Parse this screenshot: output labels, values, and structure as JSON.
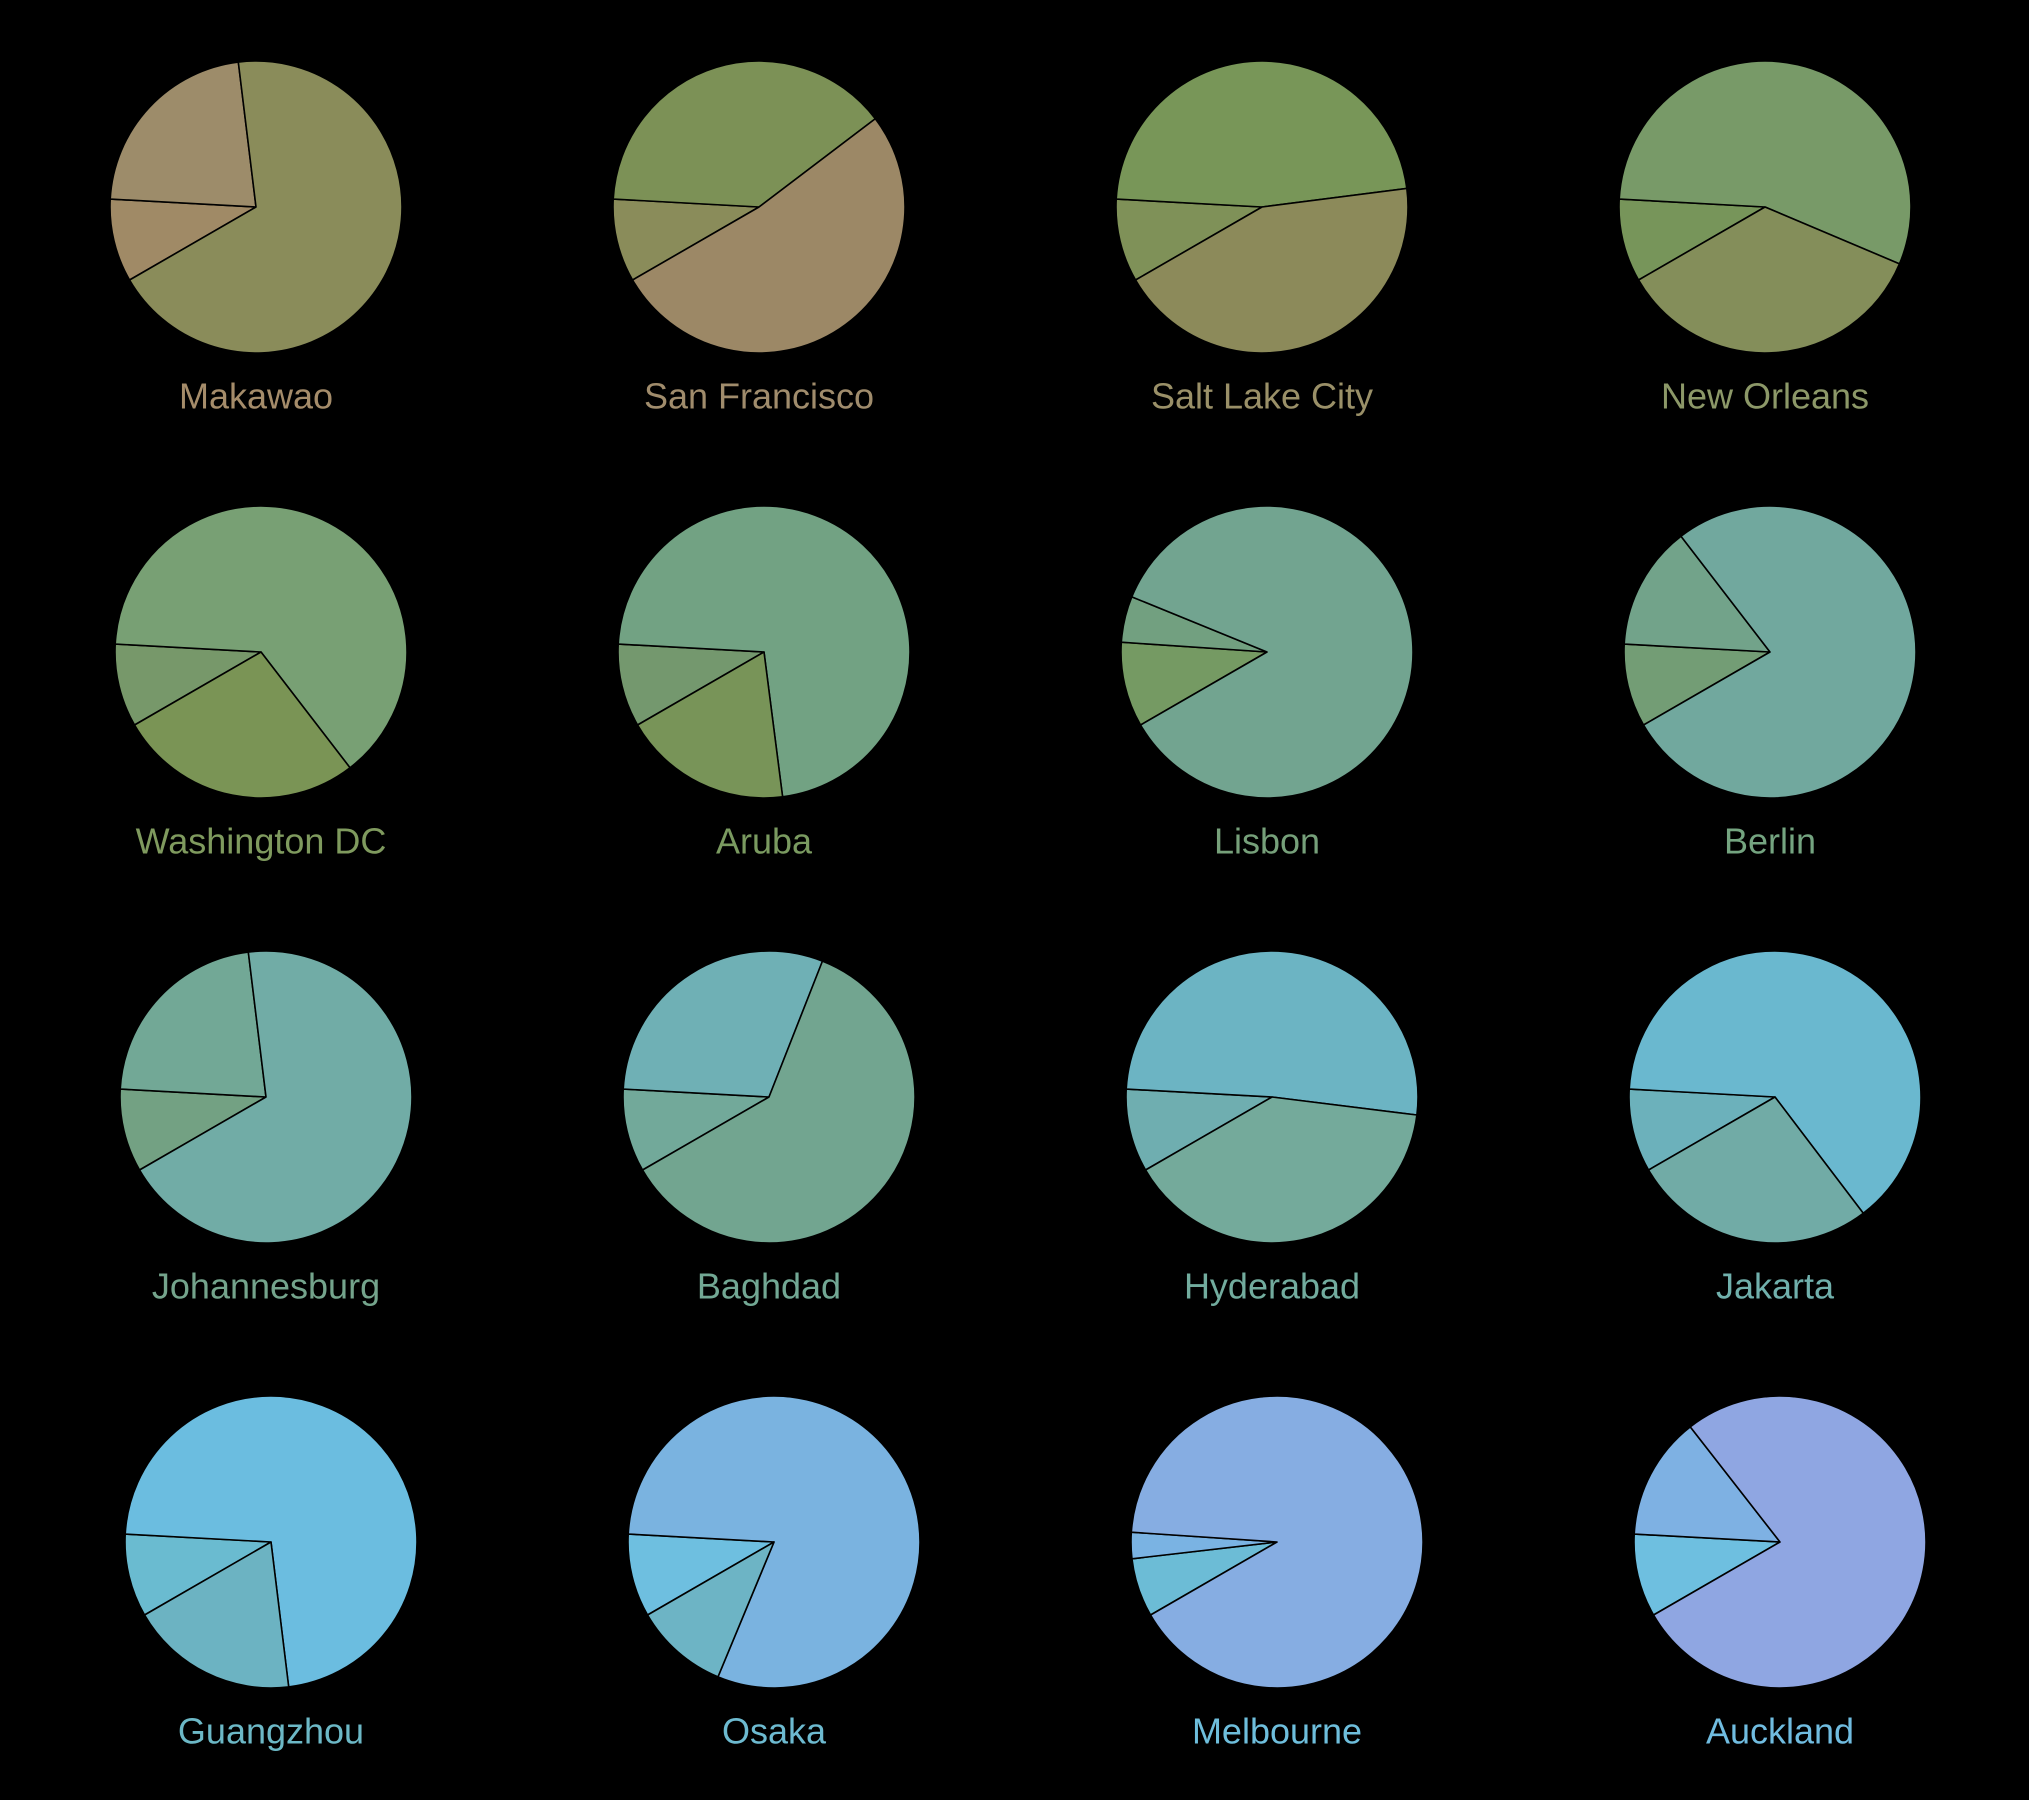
{
  "chart_data": [
    {
      "type": "pie",
      "title": "Makawao",
      "title_color": "#a58c6a",
      "values": [
        9.2,
        22.2,
        68.6
      ],
      "colors": [
        "#a08a66",
        "#9d8c6a",
        "#8a8c5a"
      ]
    },
    {
      "type": "pie",
      "title": "San Francisco",
      "title_color": "#a08c6c",
      "values": [
        9.2,
        38.8,
        52.0
      ],
      "colors": [
        "#8a8c5a",
        "#7c9156",
        "#9c8866"
      ]
    },
    {
      "type": "pie",
      "title": "Salt Lake City",
      "title_color": "#9a9068",
      "values": [
        9.2,
        47.1,
        43.7
      ],
      "colors": [
        "#7f9158",
        "#789658",
        "#8c8a5a"
      ]
    },
    {
      "type": "pie",
      "title": "New Orleans",
      "title_color": "#8c9868",
      "values": [
        9.2,
        55.5,
        35.3
      ],
      "colors": [
        "#77955a",
        "#789a68",
        "#848e5a"
      ]
    },
    {
      "type": "pie",
      "title": "Washington DC",
      "title_color": "#7f9a5e",
      "values": [
        9.2,
        63.7,
        27.1
      ],
      "colors": [
        "#77986a",
        "#78a074",
        "#7a9455"
      ]
    },
    {
      "type": "pie",
      "title": "Aruba",
      "title_color": "#7a9a60",
      "values": [
        9.2,
        72.1,
        18.7
      ],
      "colors": [
        "#74986e",
        "#72a283",
        "#789458"
      ]
    },
    {
      "type": "pie",
      "title": "Lisbon",
      "title_color": "#76a07a",
      "values": [
        9.4,
        5.1,
        85.5
      ],
      "colors": [
        "#759a63",
        "#72a080",
        "#72a490"
      ]
    },
    {
      "type": "pie",
      "title": "Berlin",
      "title_color": "#74a480",
      "values": [
        9.2,
        13.7,
        77.1
      ],
      "colors": [
        "#739d75",
        "#72a38a",
        "#71a89e"
      ]
    },
    {
      "type": "pie",
      "title": "Johannesburg",
      "title_color": "#74a48c",
      "values": [
        9.2,
        22.2,
        68.6
      ],
      "colors": [
        "#73a183",
        "#72a896",
        "#71aca6"
      ]
    },
    {
      "type": "pie",
      "title": "Baghdad",
      "title_color": "#72a894",
      "values": [
        9.2,
        30.1,
        60.7
      ],
      "colors": [
        "#72a99a",
        "#6fb0b5",
        "#72a590"
      ]
    },
    {
      "type": "pie",
      "title": "Hyderabad",
      "title_color": "#72ac9e",
      "values": [
        9.2,
        51.1,
        39.7
      ],
      "colors": [
        "#6faeb0",
        "#6cb4c3",
        "#74aa9b"
      ]
    },
    {
      "type": "pie",
      "title": "Jakarta",
      "title_color": "#70b0ac",
      "values": [
        9.2,
        63.8,
        27.0
      ],
      "colors": [
        "#6cb1bb",
        "#6ab8cf",
        "#71aba6"
      ]
    },
    {
      "type": "pie",
      "title": "Guangzhou",
      "title_color": "#6cb8c6",
      "values": [
        9.2,
        72.2,
        18.6
      ],
      "colors": [
        "#6abbd0",
        "#6bbde0",
        "#6cb3c2"
      ]
    },
    {
      "type": "pie",
      "title": "Osaka",
      "title_color": "#6dbad0",
      "values": [
        9.2,
        80.4,
        10.4
      ],
      "colors": [
        "#6ebfe0",
        "#7ab3e0",
        "#6db4c5"
      ]
    },
    {
      "type": "pie",
      "title": "Melbourne",
      "title_color": "#6ebedc",
      "values": [
        6.5,
        2.9,
        90.6
      ],
      "colors": [
        "#6cbcd6",
        "#7ab3e3",
        "#86ade2"
      ]
    },
    {
      "type": "pie",
      "title": "Auckland",
      "title_color": "#70bce0",
      "values": [
        9.2,
        13.6,
        77.2
      ],
      "colors": [
        "#6ebfe0",
        "#7eb1e3",
        "#8fa6e2"
      ]
    }
  ]
}
